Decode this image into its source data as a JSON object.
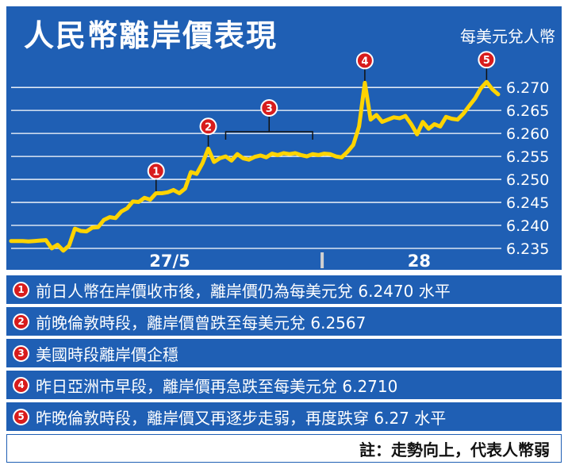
{
  "title": "人民幣離岸價表現",
  "unit_label": "每美元兌人幣",
  "colors": {
    "panel": "#1f5fb4",
    "line": "#ffd400",
    "marker": "#d81c1c",
    "grid": "#ffffff"
  },
  "chart_data": {
    "type": "line",
    "title": "人民幣離岸價表現",
    "ylabel": "每美元兌人幣",
    "ylim": [
      6.235,
      6.274
    ],
    "y_ticks": [
      "6.270",
      "6.265",
      "6.260",
      "6.255",
      "6.250",
      "6.245",
      "6.240",
      "6.235"
    ],
    "y_tick_values": [
      6.27,
      6.265,
      6.26,
      6.255,
      6.25,
      6.245,
      6.24,
      6.235
    ],
    "x_day_labels": [
      "27/5",
      "28"
    ],
    "grid": true,
    "series": [
      {
        "values": [
          6.2366,
          6.2366,
          6.2366,
          6.2365,
          6.2366,
          6.2367,
          6.2368,
          6.235,
          6.2358,
          6.2345,
          6.2356,
          6.2393,
          6.2388,
          6.2387,
          6.2395,
          6.2396,
          6.2412,
          6.2418,
          6.2416,
          6.243,
          6.2437,
          6.2452,
          6.2451,
          6.246,
          6.2456,
          6.247,
          6.247,
          6.2472,
          6.2477,
          6.247,
          6.248,
          6.2516,
          6.2512,
          6.2535,
          6.2567,
          6.2538,
          6.2546,
          6.255,
          6.2541,
          6.2555,
          6.2546,
          6.2543,
          6.2549,
          6.2552,
          6.2548,
          6.2556,
          6.2553,
          6.2557,
          6.2555,
          6.2557,
          6.2553,
          6.255,
          6.2555,
          6.2553,
          6.2556,
          6.2555,
          6.255,
          6.2548,
          6.256,
          6.2575,
          6.2615,
          6.271,
          6.263,
          6.264,
          6.2625,
          6.263,
          6.2635,
          6.2633,
          6.2638,
          6.262,
          6.2598,
          6.2625,
          6.261,
          6.262,
          6.2615,
          6.2636,
          6.2632,
          6.263,
          6.2643,
          6.266,
          6.2676,
          6.2698,
          6.2712,
          6.2696,
          6.2685
        ]
      }
    ],
    "day_split_index": 52,
    "annotations": [
      {
        "label": "1",
        "index": 25
      },
      {
        "label": "2",
        "index": 34
      },
      {
        "label": "3",
        "index_range": [
          37,
          52
        ]
      },
      {
        "label": "4",
        "index": 61
      },
      {
        "label": "5",
        "index": 82
      }
    ]
  },
  "notes": [
    {
      "num": "1",
      "text": "前日人幣在岸價收市後，離岸價仍為每美元兌 6.2470 水平"
    },
    {
      "num": "2",
      "text": "前晚倫敦時段，離岸價曾跌至每美元兌 6.2567"
    },
    {
      "num": "3",
      "text": "美國時段離岸價企穩"
    },
    {
      "num": "4",
      "text": "昨日亞洲市早段，離岸價再急跌至每美元兌 6.2710"
    },
    {
      "num": "5",
      "text": "昨晚倫敦時段，離岸價又再逐步走弱，再度跌穿 6.27 水平"
    }
  ],
  "footnote": "註：走勢向上，代表人幣弱"
}
